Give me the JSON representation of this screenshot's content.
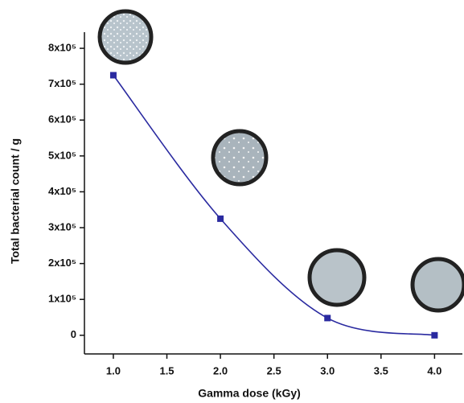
{
  "chart_data": {
    "type": "line",
    "x_label": "Gamma dose (kGy)",
    "y_label": "Total bacterial count / g",
    "x": [
      1.0,
      2.0,
      3.0,
      4.0
    ],
    "series": [
      {
        "color": "#2a2aa0",
        "values": [
          725000,
          325000,
          48000,
          0
        ]
      }
    ],
    "xlim": [
      0.73,
      4.26
    ],
    "ylim": [
      -52000,
      845000
    ],
    "xticks": [
      {
        "value": 1,
        "label": "1.0"
      },
      {
        "value": 1.5,
        "label": "1.5"
      },
      {
        "value": 2,
        "label": "2.0"
      },
      {
        "value": 2.5,
        "label": "2.5"
      },
      {
        "value": 3,
        "label": "3.0"
      },
      {
        "value": 3.5,
        "label": "3.5"
      },
      {
        "value": 4,
        "label": "4.0"
      }
    ],
    "yticks": [
      0,
      {
        "value": 100000,
        "label": "1x10⁵"
      },
      {
        "value": 200000,
        "label": "2x10⁵"
      },
      {
        "value": 300000,
        "label": "3x10⁵"
      },
      {
        "value": 400000,
        "label": "4x10⁵"
      },
      {
        "value": 500000,
        "label": "5x10⁵"
      },
      {
        "value": 600000,
        "label": "6x10⁵"
      },
      {
        "value": 700000,
        "label": "7x10⁵"
      },
      {
        "value": 800000,
        "label": "8x10⁵"
      }
    ]
  }
}
